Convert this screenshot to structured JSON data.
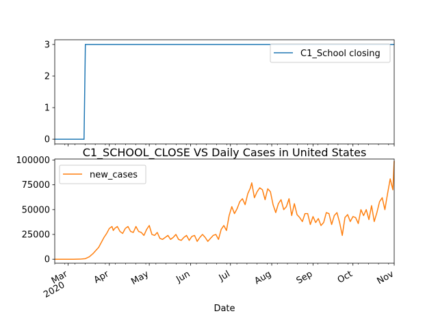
{
  "chart_data": [
    {
      "type": "line",
      "title": "",
      "xlabel": "",
      "ylabel": "",
      "ylim": [
        -0.15,
        3.15
      ],
      "yticks": [
        0,
        1,
        2,
        3
      ],
      "legend": {
        "placement": "upper right"
      },
      "series": [
        {
          "name": "C1_School closing",
          "color": "#1f77b4",
          "x": [
            "2020-02-20",
            "2020-03-13",
            "2020-03-14",
            "2020-11-01"
          ],
          "values": [
            0,
            0,
            3,
            3
          ]
        }
      ]
    },
    {
      "type": "line",
      "title": "C1_SCHOOL_CLOSE VS Daily Cases in United States",
      "xlabel": "Date",
      "ylabel": "",
      "ylim": [
        -4000,
        101000
      ],
      "yticks": [
        0,
        25000,
        50000,
        75000,
        100000
      ],
      "ytick_labels": [
        "0",
        "25000",
        "50000",
        "75000",
        "100000"
      ],
      "xticks": [
        {
          "date": "2020-03-01",
          "label": "Mar",
          "sublabel": "2020"
        },
        {
          "date": "2020-04-01",
          "label": "Apr"
        },
        {
          "date": "2020-05-01",
          "label": "May"
        },
        {
          "date": "2020-06-01",
          "label": "Jun"
        },
        {
          "date": "2020-07-01",
          "label": "Jul"
        },
        {
          "date": "2020-08-01",
          "label": "Aug"
        },
        {
          "date": "2020-09-01",
          "label": "Sep"
        },
        {
          "date": "2020-10-01",
          "label": "Oct"
        },
        {
          "date": "2020-11-01",
          "label": "Nov"
        }
      ],
      "legend": {
        "placement": "upper left"
      },
      "series": [
        {
          "name": "new_cases",
          "color": "#ff7f0e",
          "x": [
            "2020-02-20",
            "2020-03-05",
            "2020-03-10",
            "2020-03-14",
            "2020-03-17",
            "2020-03-20",
            "2020-03-22",
            "2020-03-24",
            "2020-03-26",
            "2020-03-28",
            "2020-03-30",
            "2020-04-01",
            "2020-04-03",
            "2020-04-04",
            "2020-04-05",
            "2020-04-07",
            "2020-04-09",
            "2020-04-11",
            "2020-04-13",
            "2020-04-15",
            "2020-04-17",
            "2020-04-19",
            "2020-04-21",
            "2020-04-23",
            "2020-04-25",
            "2020-04-27",
            "2020-04-29",
            "2020-05-01",
            "2020-05-03",
            "2020-05-05",
            "2020-05-07",
            "2020-05-09",
            "2020-05-11",
            "2020-05-13",
            "2020-05-15",
            "2020-05-17",
            "2020-05-19",
            "2020-05-21",
            "2020-05-23",
            "2020-05-25",
            "2020-05-27",
            "2020-05-29",
            "2020-05-31",
            "2020-06-02",
            "2020-06-04",
            "2020-06-06",
            "2020-06-08",
            "2020-06-10",
            "2020-06-12",
            "2020-06-14",
            "2020-06-16",
            "2020-06-18",
            "2020-06-20",
            "2020-06-22",
            "2020-06-24",
            "2020-06-26",
            "2020-06-28",
            "2020-06-30",
            "2020-07-02",
            "2020-07-04",
            "2020-07-06",
            "2020-07-08",
            "2020-07-10",
            "2020-07-12",
            "2020-07-14",
            "2020-07-16",
            "2020-07-17",
            "2020-07-19",
            "2020-07-21",
            "2020-07-23",
            "2020-07-25",
            "2020-07-27",
            "2020-07-29",
            "2020-07-31",
            "2020-08-02",
            "2020-08-04",
            "2020-08-06",
            "2020-08-08",
            "2020-08-10",
            "2020-08-12",
            "2020-08-14",
            "2020-08-16",
            "2020-08-18",
            "2020-08-20",
            "2020-08-22",
            "2020-08-24",
            "2020-08-26",
            "2020-08-28",
            "2020-08-30",
            "2020-09-01",
            "2020-09-03",
            "2020-09-05",
            "2020-09-07",
            "2020-09-09",
            "2020-09-11",
            "2020-09-13",
            "2020-09-15",
            "2020-09-17",
            "2020-09-19",
            "2020-09-21",
            "2020-09-23",
            "2020-09-25",
            "2020-09-27",
            "2020-09-29",
            "2020-10-01",
            "2020-10-03",
            "2020-10-05",
            "2020-10-07",
            "2020-10-09",
            "2020-10-11",
            "2020-10-13",
            "2020-10-15",
            "2020-10-17",
            "2020-10-19",
            "2020-10-21",
            "2020-10-23",
            "2020-10-25",
            "2020-10-27",
            "2020-10-29",
            "2020-10-31",
            "2020-11-01"
          ],
          "values": [
            0,
            0,
            100,
            600,
            2500,
            6000,
            9000,
            12000,
            17000,
            22000,
            26000,
            31000,
            33000,
            29000,
            31000,
            33000,
            28000,
            26000,
            31000,
            33000,
            28000,
            27000,
            33000,
            28000,
            27000,
            24000,
            30000,
            34000,
            25000,
            24000,
            27000,
            21000,
            20000,
            22000,
            24000,
            20000,
            22000,
            25000,
            20000,
            19000,
            22000,
            24000,
            19000,
            23000,
            24000,
            18000,
            22000,
            25000,
            22000,
            18000,
            21000,
            24000,
            25000,
            20000,
            30000,
            34000,
            29000,
            44000,
            53000,
            46000,
            51000,
            58000,
            61000,
            55000,
            66000,
            72000,
            77000,
            62000,
            68000,
            72000,
            70000,
            60000,
            71000,
            68000,
            55000,
            47000,
            56000,
            60000,
            50000,
            53000,
            61000,
            44000,
            56000,
            45000,
            42000,
            38000,
            46000,
            46000,
            35000,
            43000,
            37000,
            41000,
            34000,
            37000,
            47000,
            46000,
            35000,
            44000,
            47000,
            37000,
            24000,
            42000,
            45000,
            38000,
            43000,
            42000,
            36000,
            50000,
            44000,
            50000,
            40000,
            54000,
            38000,
            47000,
            58000,
            62000,
            50000,
            66000,
            81000,
            70000,
            99000
          ]
        }
      ]
    }
  ]
}
